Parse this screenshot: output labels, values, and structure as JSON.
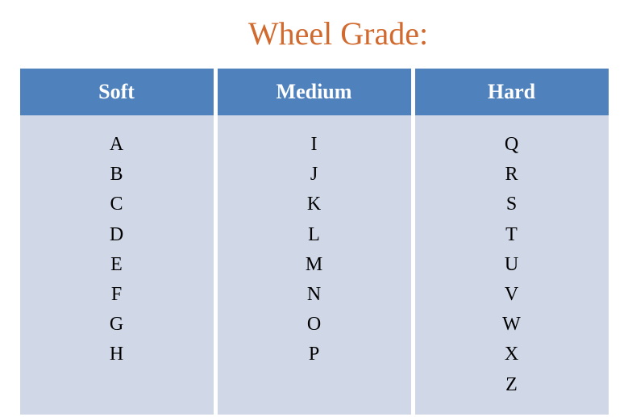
{
  "title": "Wheel Grade:",
  "table": {
    "type": "table",
    "header_bg": "#4f81bd",
    "header_fg": "#ffffff",
    "body_bg": "#d0d8e8",
    "body_fg": "#000000",
    "background_color": "#ffffff",
    "title_color": "#d16a2e",
    "title_fontsize": 40,
    "header_fontsize": 26,
    "cell_fontsize": 24,
    "columns": [
      {
        "label": "Soft",
        "values": [
          "A",
          "B",
          "C",
          "D",
          "E",
          "F",
          "G",
          "H"
        ]
      },
      {
        "label": "Medium",
        "values": [
          "I",
          "J",
          "K",
          "L",
          "M",
          "N",
          "O",
          "P"
        ]
      },
      {
        "label": "Hard",
        "values": [
          "Q",
          "R",
          "S",
          "T",
          "U",
          "V",
          "W",
          "X",
          "Z"
        ]
      }
    ]
  }
}
